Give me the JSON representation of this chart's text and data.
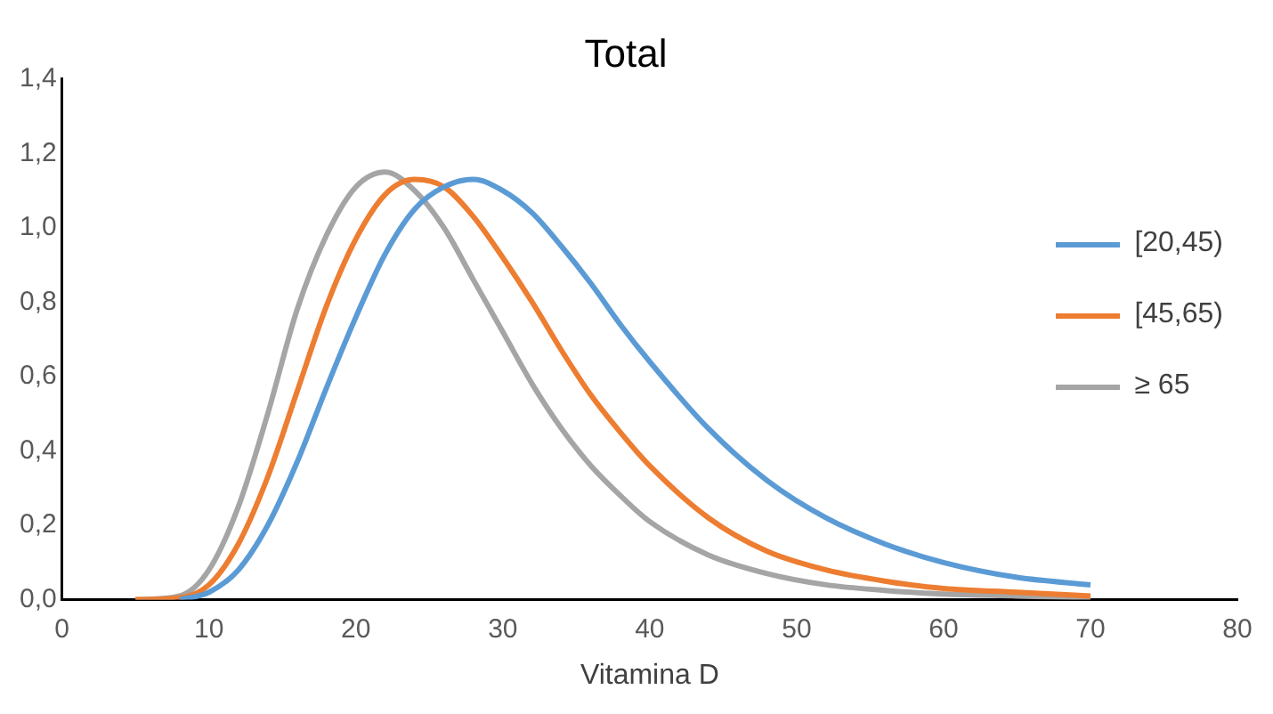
{
  "chart_data": {
    "type": "line",
    "title": "Total",
    "xlabel": "Vitamina D",
    "xlim": [
      0,
      80
    ],
    "xticks": [
      0,
      10,
      20,
      30,
      40,
      50,
      60,
      70,
      80
    ],
    "ylim": [
      0,
      1.4
    ],
    "yticks": [
      {
        "value": 0,
        "label": "0,0"
      },
      {
        "value": 0.2,
        "label": "0,2"
      },
      {
        "value": 0.4,
        "label": "0,4"
      },
      {
        "value": 0.6,
        "label": "0,6"
      },
      {
        "value": 0.8,
        "label": "0,8"
      },
      {
        "value": 1,
        "label": "1,0"
      },
      {
        "value": 1.2,
        "label": "1,2"
      },
      {
        "value": 1.4,
        "label": "1,4"
      }
    ],
    "grid": false,
    "legend": "right",
    "marker": "none",
    "line_style": "solid",
    "series": [
      {
        "name": "[20,45)",
        "color": "#5b9bd5",
        "x": [
          8,
          10,
          12,
          14,
          16,
          18,
          20,
          22,
          24,
          26,
          28,
          30,
          32,
          34,
          36,
          38,
          40,
          44,
          48,
          52,
          56,
          60,
          65,
          70
        ],
        "values": [
          0,
          0.02,
          0.08,
          0.2,
          0.37,
          0.57,
          0.76,
          0.93,
          1.05,
          1.11,
          1.13,
          1.1,
          1.04,
          0.95,
          0.85,
          0.74,
          0.64,
          0.46,
          0.32,
          0.22,
          0.15,
          0.1,
          0.06,
          0.04
        ]
      },
      {
        "name": "[45,65)",
        "color": "#ed7d31",
        "x": [
          5,
          8,
          10,
          12,
          14,
          16,
          18,
          20,
          22,
          24,
          26,
          28,
          30,
          32,
          34,
          36,
          38,
          40,
          44,
          48,
          52,
          56,
          60,
          65,
          70
        ],
        "values": [
          0,
          0.005,
          0.04,
          0.15,
          0.33,
          0.56,
          0.79,
          0.97,
          1.09,
          1.13,
          1.11,
          1.03,
          0.92,
          0.8,
          0.67,
          0.55,
          0.45,
          0.36,
          0.22,
          0.13,
          0.08,
          0.05,
          0.03,
          0.02,
          0.01
        ]
      },
      {
        "name": "≥ 65",
        "color": "#a5a5a5",
        "x": [
          5,
          8,
          10,
          12,
          14,
          16,
          18,
          20,
          22,
          24,
          26,
          28,
          30,
          32,
          34,
          36,
          38,
          40,
          44,
          48,
          52,
          56,
          60,
          65,
          70
        ],
        "values": [
          0,
          0.01,
          0.08,
          0.25,
          0.5,
          0.78,
          0.98,
          1.11,
          1.15,
          1.1,
          1,
          0.86,
          0.72,
          0.58,
          0.46,
          0.36,
          0.28,
          0.21,
          0.12,
          0.07,
          0.04,
          0.025,
          0.015,
          0.01,
          0.005
        ]
      }
    ]
  }
}
